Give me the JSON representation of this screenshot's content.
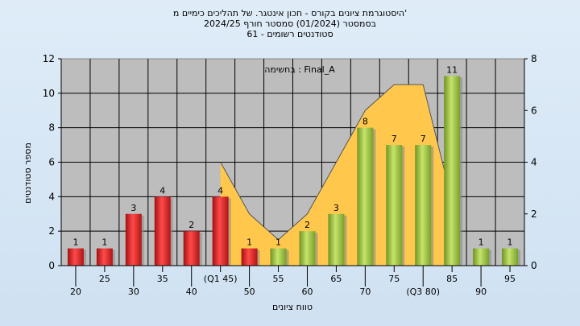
{
  "header": {
    "line1": "היסטוגרמת ציונים בקורס - חכון אינטגר. של תהליכים כימיים מ'",
    "line2": "בסמסטר  (01/2024)  סמסטר חורף  2024/25",
    "line3": "סטודנטים רשומים - 61"
  },
  "chart_data": {
    "type": "bar",
    "annotation": "בחשימה : Final_A",
    "xlabel": "טווח ציונים",
    "ylabel": "מספר סטודנטים",
    "categories": [
      "20",
      "25",
      "30",
      "35",
      "40",
      "(Q1 45)",
      "50",
      "55",
      "60",
      "65",
      "70",
      "75",
      "(Q3 80)",
      "85",
      "90",
      "95"
    ],
    "values": [
      1,
      1,
      3,
      4,
      2,
      4,
      1,
      1,
      2,
      3,
      8,
      7,
      7,
      11,
      1,
      1
    ],
    "value_labels": [
      "1",
      "1",
      "3",
      "4",
      "2",
      "4",
      "1",
      "1",
      "2",
      "3",
      "8",
      "7",
      "7",
      "11",
      "1",
      "1"
    ],
    "bar_colors": [
      "red",
      "red",
      "red",
      "red",
      "red",
      "red",
      "red",
      "green",
      "green",
      "green",
      "green",
      "green",
      "green",
      "green",
      "green",
      "green"
    ],
    "ylim": [
      0,
      12
    ],
    "yticks": [
      0,
      2,
      4,
      6,
      8,
      10,
      12
    ],
    "y2lim": [
      0,
      8
    ],
    "y2ticks": [
      0,
      2,
      4,
      6,
      8
    ],
    "area_series": {
      "x": [
        "(Q1 45)",
        "50",
        "55",
        "60",
        "65",
        "70",
        "75",
        "(Q3 80)",
        "85"
      ],
      "values": [
        4,
        2,
        1,
        2,
        4,
        6,
        7,
        7,
        2.5
      ]
    },
    "grid": true,
    "colors": {
      "red": "#e02a2a",
      "green": "#9cc33a",
      "area": "#ffc84d",
      "plot_bg": "#bdbdbd"
    }
  }
}
